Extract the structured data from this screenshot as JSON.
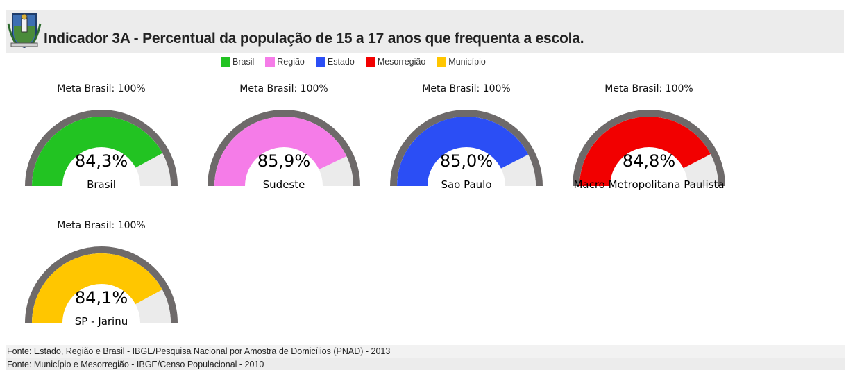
{
  "header": {
    "title": "Indicador 3A - Percentual da população de 15 a 17 anos que frequenta a escola."
  },
  "legend": [
    {
      "label": "Brasil",
      "color": "#22c322"
    },
    {
      "label": "Região",
      "color": "#f57ce8"
    },
    {
      "label": "Estado",
      "color": "#2b4ef5"
    },
    {
      "label": "Mesorregião",
      "color": "#f20000"
    },
    {
      "label": "Município",
      "color": "#ffc600"
    }
  ],
  "chart_data": {
    "type": "gauge",
    "max": 100,
    "gauges": [
      {
        "meta": "Meta Brasil: 100%",
        "value": 84.3,
        "value_label": "84,3%",
        "category": "Brasil",
        "color": "#22c322"
      },
      {
        "meta": "Meta Brasil: 100%",
        "value": 85.9,
        "value_label": "85,9%",
        "category": "Sudeste",
        "color": "#f57ce8"
      },
      {
        "meta": "Meta Brasil: 100%",
        "value": 85.0,
        "value_label": "85,0%",
        "category": "Sao Paulo",
        "color": "#2b4ef5"
      },
      {
        "meta": "Meta Brasil: 100%",
        "value": 84.8,
        "value_label": "84,8%",
        "category": "Macro Metropolitana Paulista",
        "color": "#f20000"
      },
      {
        "meta": "Meta Brasil: 100%",
        "value": 84.1,
        "value_label": "84,1%",
        "category": "SP - Jarinu",
        "color": "#ffc600"
      }
    ]
  },
  "footer": {
    "source1": "Fonte: Estado, Região e Brasil - IBGE/Pesquisa Nacional por Amostra de Domicílios (PNAD) - 2013",
    "source2": "Fonte: Município e Mesorregião - IBGE/Censo Populacional - 2010"
  }
}
